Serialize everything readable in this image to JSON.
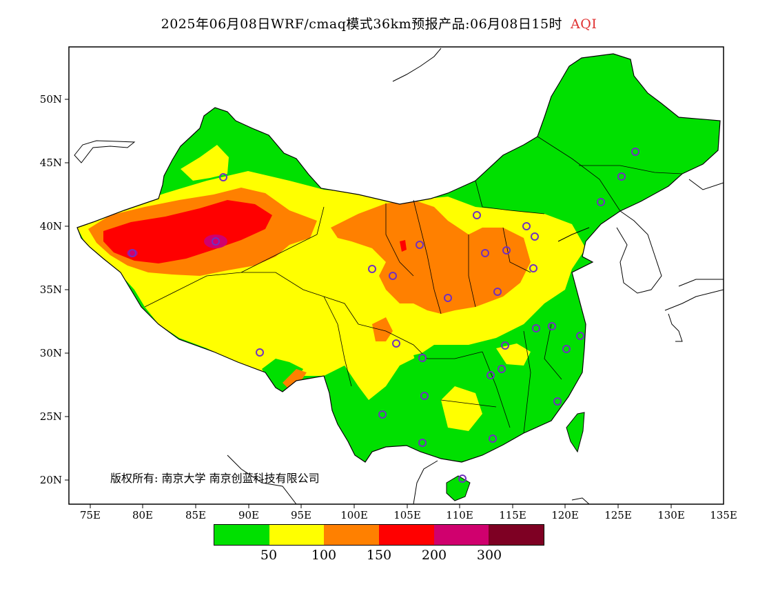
{
  "title": {
    "main": "2025年06月08日WRF/cmaq模式36km预报产品:06月08日15时",
    "variable": "AQI"
  },
  "map": {
    "lat_ticks": [
      "50N",
      "45N",
      "40N",
      "35N",
      "30N",
      "25N",
      "20N"
    ],
    "lon_ticks": [
      "75E",
      "80E",
      "85E",
      "90E",
      "95E",
      "100E",
      "105E",
      "110E",
      "115E",
      "120E",
      "125E",
      "130E",
      "135E"
    ],
    "copyright": "版权所有: 南京大学 南京创蓝科技有限公司"
  },
  "legend": {
    "colors": [
      "#00e000",
      "#ffff00",
      "#ff8000",
      "#ff0000",
      "#d0006e",
      "#7e0023"
    ],
    "labels": [
      "50",
      "100",
      "150",
      "200",
      "300"
    ]
  }
}
